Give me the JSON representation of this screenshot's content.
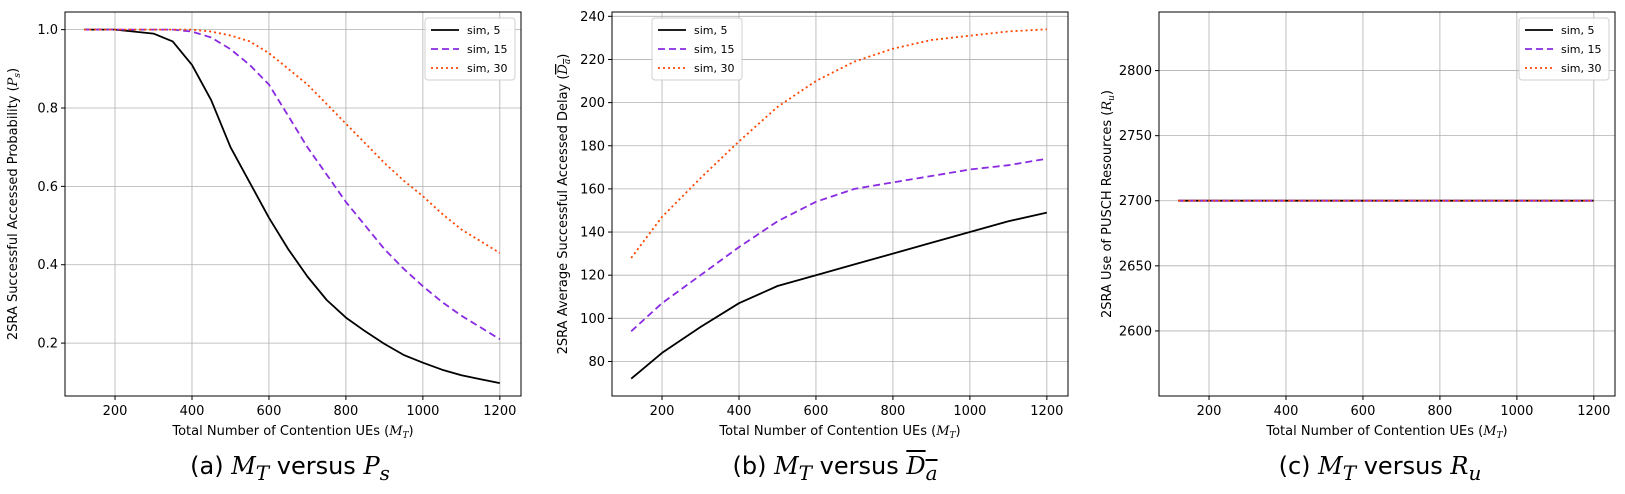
{
  "captions": {
    "a": {
      "prefix": "(a) ",
      "m": "M",
      "msub": "T",
      "mid": " versus ",
      "v": "P",
      "vsub": "s"
    },
    "b": {
      "prefix": "(b) ",
      "m": "M",
      "msub": "T",
      "mid": " versus ",
      "v": "D",
      "vsub": "a"
    },
    "c": {
      "prefix": "(c) ",
      "m": "M",
      "msub": "T",
      "mid": " versus ",
      "v": "R",
      "vsub": "u"
    }
  },
  "chart_data": [
    {
      "type": "line",
      "xlabel": "Total Number of Contention UEs (M_T)",
      "ylabel": "2SRA Successful Accessed Probability (P_s)",
      "xlim": [
        70,
        1255
      ],
      "ylim": [
        0.065,
        1.045
      ],
      "xticks": [
        200,
        400,
        600,
        800,
        1000,
        1200
      ],
      "yticks": [
        0.2,
        0.4,
        0.6,
        0.8,
        1.0
      ],
      "ytick_decimals": 1,
      "grid": true,
      "legend_position": "top-right",
      "x": [
        120,
        200,
        300,
        350,
        400,
        450,
        500,
        550,
        600,
        650,
        700,
        750,
        800,
        850,
        900,
        950,
        1000,
        1050,
        1100,
        1150,
        1200
      ],
      "series": [
        {
          "name": "sim, 5",
          "color": "#000000",
          "dash": "solid",
          "values": [
            1.0,
            1.0,
            0.99,
            0.97,
            0.91,
            0.82,
            0.7,
            0.61,
            0.52,
            0.44,
            0.37,
            0.31,
            0.265,
            0.23,
            0.198,
            0.17,
            0.15,
            0.132,
            0.118,
            0.108,
            0.098
          ]
        },
        {
          "name": "sim, 15",
          "color": "#8a2be2",
          "dash": "dashed",
          "values": [
            1.0,
            1.0,
            1.0,
            1.0,
            0.995,
            0.98,
            0.95,
            0.91,
            0.86,
            0.78,
            0.7,
            0.63,
            0.56,
            0.5,
            0.44,
            0.39,
            0.345,
            0.305,
            0.27,
            0.24,
            0.21
          ]
        },
        {
          "name": "sim, 30",
          "color": "#ff4500",
          "dash": "dotted",
          "values": [
            1.0,
            1.0,
            1.0,
            1.0,
            1.0,
            0.995,
            0.985,
            0.97,
            0.94,
            0.9,
            0.86,
            0.81,
            0.76,
            0.71,
            0.66,
            0.615,
            0.575,
            0.53,
            0.49,
            0.46,
            0.43
          ]
        }
      ]
    },
    {
      "type": "line",
      "xlabel": "Total Number of Contention UEs (M_T)",
      "ylabel": "2SRA Average Successful Accessed Delay (D_a)",
      "xlim": [
        70,
        1255
      ],
      "ylim": [
        64,
        242
      ],
      "xticks": [
        200,
        400,
        600,
        800,
        1000,
        1200
      ],
      "yticks": [
        80,
        100,
        120,
        140,
        160,
        180,
        200,
        220,
        240
      ],
      "ytick_decimals": 0,
      "grid": true,
      "legend_position": "top-left",
      "x": [
        120,
        200,
        300,
        400,
        500,
        600,
        700,
        800,
        900,
        1000,
        1100,
        1200
      ],
      "series": [
        {
          "name": "sim, 5",
          "color": "#000000",
          "dash": "solid",
          "values": [
            72,
            84,
            96,
            107,
            115,
            120,
            125,
            130,
            135,
            140,
            145,
            149
          ]
        },
        {
          "name": "sim, 15",
          "color": "#8a2be2",
          "dash": "dashed",
          "values": [
            94,
            107,
            120,
            133,
            145,
            154,
            160,
            163,
            166,
            169,
            171,
            174
          ]
        },
        {
          "name": "sim, 30",
          "color": "#ff4500",
          "dash": "dotted",
          "values": [
            128,
            147,
            165,
            182,
            198,
            210,
            219,
            225,
            229,
            231,
            233,
            234
          ]
        }
      ]
    },
    {
      "type": "line",
      "xlabel": "Total Number of Contention UEs (M_T)",
      "ylabel": "2SRA Use of PUSCH Resources (R_u)",
      "xlim": [
        70,
        1255
      ],
      "ylim": [
        2550,
        2845
      ],
      "xticks": [
        200,
        400,
        600,
        800,
        1000,
        1200
      ],
      "yticks": [
        2600,
        2650,
        2700,
        2750,
        2800
      ],
      "ytick_decimals": 0,
      "grid": true,
      "legend_position": "top-right",
      "x": [
        120,
        1200
      ],
      "series": [
        {
          "name": "sim, 5",
          "color": "#000000",
          "dash": "solid",
          "values": [
            2700,
            2700
          ]
        },
        {
          "name": "sim, 15",
          "color": "#8a2be2",
          "dash": "dashed",
          "values": [
            2700,
            2700
          ]
        },
        {
          "name": "sim, 30",
          "color": "#ff4500",
          "dash": "dotted",
          "values": [
            2700,
            2700
          ]
        }
      ]
    }
  ]
}
